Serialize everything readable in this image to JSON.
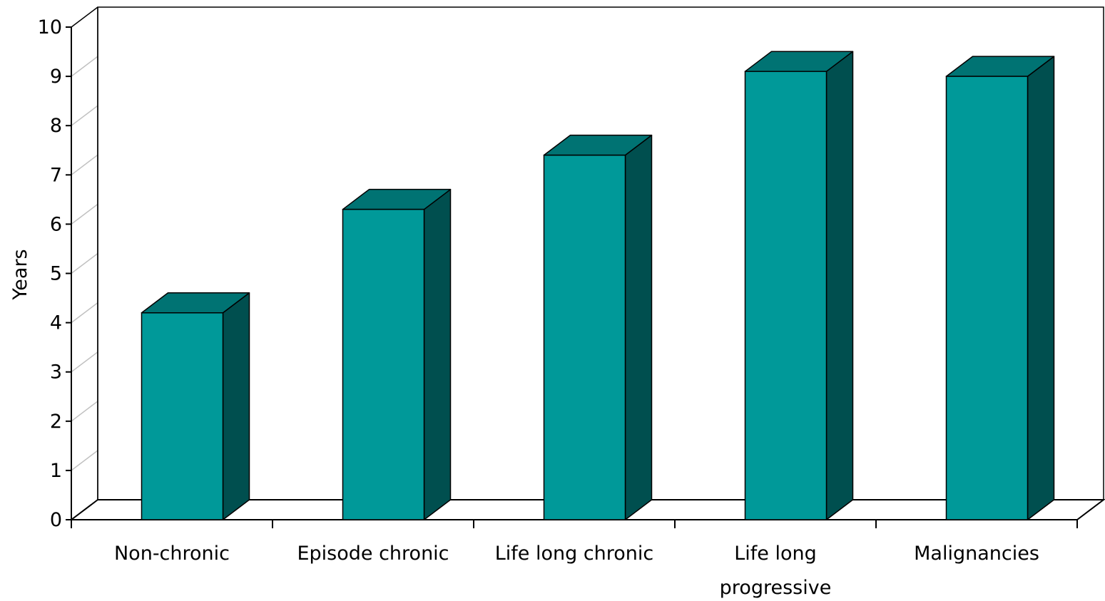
{
  "chart_data": {
    "type": "bar",
    "categories": [
      "Non-chronic",
      "Episode chronic",
      "Life long chronic",
      "Life long progressive",
      "Malignancies"
    ],
    "category_label_lines": [
      [
        "Non-chronic"
      ],
      [
        "Episode chronic"
      ],
      [
        "Life long chronic"
      ],
      [
        "Life long",
        "progressive"
      ],
      [
        "Malignancies"
      ]
    ],
    "values": [
      4.2,
      6.3,
      7.4,
      9.1,
      9.0
    ],
    "title": "",
    "xlabel": "",
    "ylabel": "Years",
    "ylim": [
      0,
      10
    ],
    "yticks": [
      "0",
      "1",
      "2",
      "3",
      "4",
      "5",
      "6",
      "7",
      "8",
      "9",
      "10"
    ],
    "grid": true,
    "style": "3d-bar",
    "colors": {
      "bar_front": "#009999",
      "bar_top": "#007373",
      "bar_side": "#004f4f",
      "gridline": "#c0c0c0",
      "axis": "#000000"
    }
  }
}
